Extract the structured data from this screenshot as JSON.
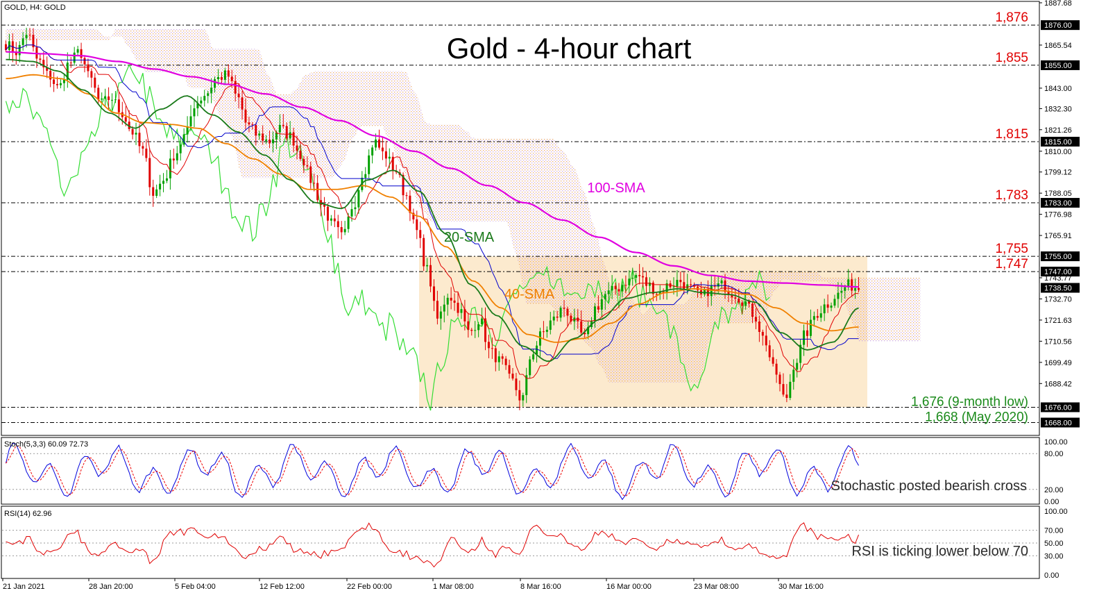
{
  "chart_data": {
    "type": "candlestick",
    "header": "GOLD, H4:  GOLD",
    "title": "Gold - 4-hour chart",
    "price_axis": {
      "ticks": [
        "1887.68",
        "1865.54",
        "1843.00",
        "1832.30",
        "1821.26",
        "1810.00",
        "1799.12",
        "1788.05",
        "1776.98",
        "1765.91",
        "1743.77",
        "1732.70",
        "1721.63",
        "1710.56",
        "1699.49",
        "1688.42"
      ],
      "ylim": [
        1662,
        1887.68
      ]
    },
    "time_axis": {
      "ticks": [
        "21 Jan 2021",
        "28 Jan 20:00",
        "5 Feb 04:00",
        "12 Feb 12:00",
        "22 Feb 00:00",
        "1 Mar 08:00",
        "8 Mar 16:00",
        "16 Mar 00:00",
        "23 Mar 08:00",
        "30 Mar 16:00"
      ]
    },
    "levels": [
      {
        "value": 1876,
        "label": "1,876",
        "tag": "1876.00"
      },
      {
        "value": 1855,
        "label": "1,855",
        "tag": "1855.00"
      },
      {
        "value": 1815,
        "label": "1,815",
        "tag": "1815.00"
      },
      {
        "value": 1783,
        "label": "1,783",
        "tag": "1783.00"
      },
      {
        "value": 1755,
        "label": "1,755",
        "tag": "1755.00"
      },
      {
        "value": 1747,
        "label": "1,747",
        "tag": "1747.00"
      },
      {
        "value": 1676,
        "label": "1,676 (9-month low)",
        "tag": "1676.00"
      },
      {
        "value": 1668,
        "label": "1,668 (May 2020)",
        "tag": "1668.00"
      }
    ],
    "current_price": {
      "value": 1738.5,
      "tag": "1738.50"
    },
    "range_box": {
      "from": 1676,
      "to": 1755
    },
    "indicator_labels": {
      "sma100": "100-SMA",
      "sma20": "20-SMA",
      "sma40": "40-SMA"
    },
    "colors": {
      "up": "#00a000",
      "down": "#e00000",
      "sma100": "#e000e0",
      "sma20": "#1a7a1a",
      "sma40": "#f08000",
      "kijun": "#0000cc",
      "tenkan": "#e00000",
      "chikou": "#33dd33",
      "box": "#fbe6c6"
    },
    "stochastic": {
      "header": "Stoch(5,3,3) 60.09 72.73",
      "ticks": [
        "100.00",
        "80.00",
        "20.00",
        "0.00"
      ],
      "main": 60.09,
      "signal": 72.73,
      "note": "Stochastic posted bearish cross",
      "colors": {
        "main": "#0000dd",
        "signal": "#ee0000"
      }
    },
    "rsi": {
      "header": "RSI(14) 62.96",
      "ticks": [
        "100.00",
        "70.00",
        "50.00",
        "30.00",
        "0.00"
      ],
      "value": 62.96,
      "note": "RSI is ticking lower below 70",
      "color": "#e00000"
    },
    "series_anchors": {
      "close": [
        1866,
        1862,
        1872,
        1858,
        1850,
        1843,
        1856,
        1862,
        1848,
        1835,
        1838,
        1830,
        1820,
        1810,
        1788,
        1795,
        1808,
        1818,
        1835,
        1840,
        1848,
        1850,
        1838,
        1823,
        1818,
        1815,
        1822,
        1818,
        1808,
        1795,
        1782,
        1772,
        1765,
        1782,
        1800,
        1815,
        1808,
        1800,
        1787,
        1768,
        1748,
        1722,
        1735,
        1728,
        1715,
        1722,
        1705,
        1700,
        1690,
        1680,
        1705,
        1715,
        1722,
        1728,
        1720,
        1712,
        1728,
        1735,
        1738,
        1742,
        1745,
        1740,
        1736,
        1740,
        1742,
        1738,
        1734,
        1738,
        1740,
        1736,
        1732,
        1725,
        1712,
        1695,
        1680,
        1700,
        1715,
        1725,
        1730,
        1735,
        1740,
        1738.5
      ],
      "sma100": [
        1862,
        1861,
        1860,
        1857,
        1853,
        1849,
        1845,
        1840,
        1833,
        1826,
        1818,
        1810,
        1801,
        1792,
        1783,
        1774,
        1765,
        1757,
        1750,
        1745,
        1742,
        1741,
        1740,
        1739
      ],
      "sma20": [
        1858,
        1857,
        1852,
        1842,
        1830,
        1822,
        1832,
        1839,
        1829,
        1820,
        1808,
        1795,
        1783,
        1780,
        1795,
        1800,
        1789,
        1767,
        1740,
        1724,
        1708,
        1700,
        1712,
        1722,
        1733,
        1736,
        1738,
        1736,
        1735,
        1731,
        1715,
        1706,
        1710,
        1728
      ],
      "sma40": [
        1848,
        1850,
        1848,
        1840,
        1830,
        1825,
        1824,
        1822,
        1814,
        1806,
        1798,
        1790,
        1790,
        1792,
        1786,
        1776,
        1760,
        1742,
        1728,
        1714,
        1710,
        1712,
        1720,
        1730,
        1736,
        1738,
        1737,
        1735,
        1728,
        1720,
        1716,
        1718
      ]
    }
  }
}
